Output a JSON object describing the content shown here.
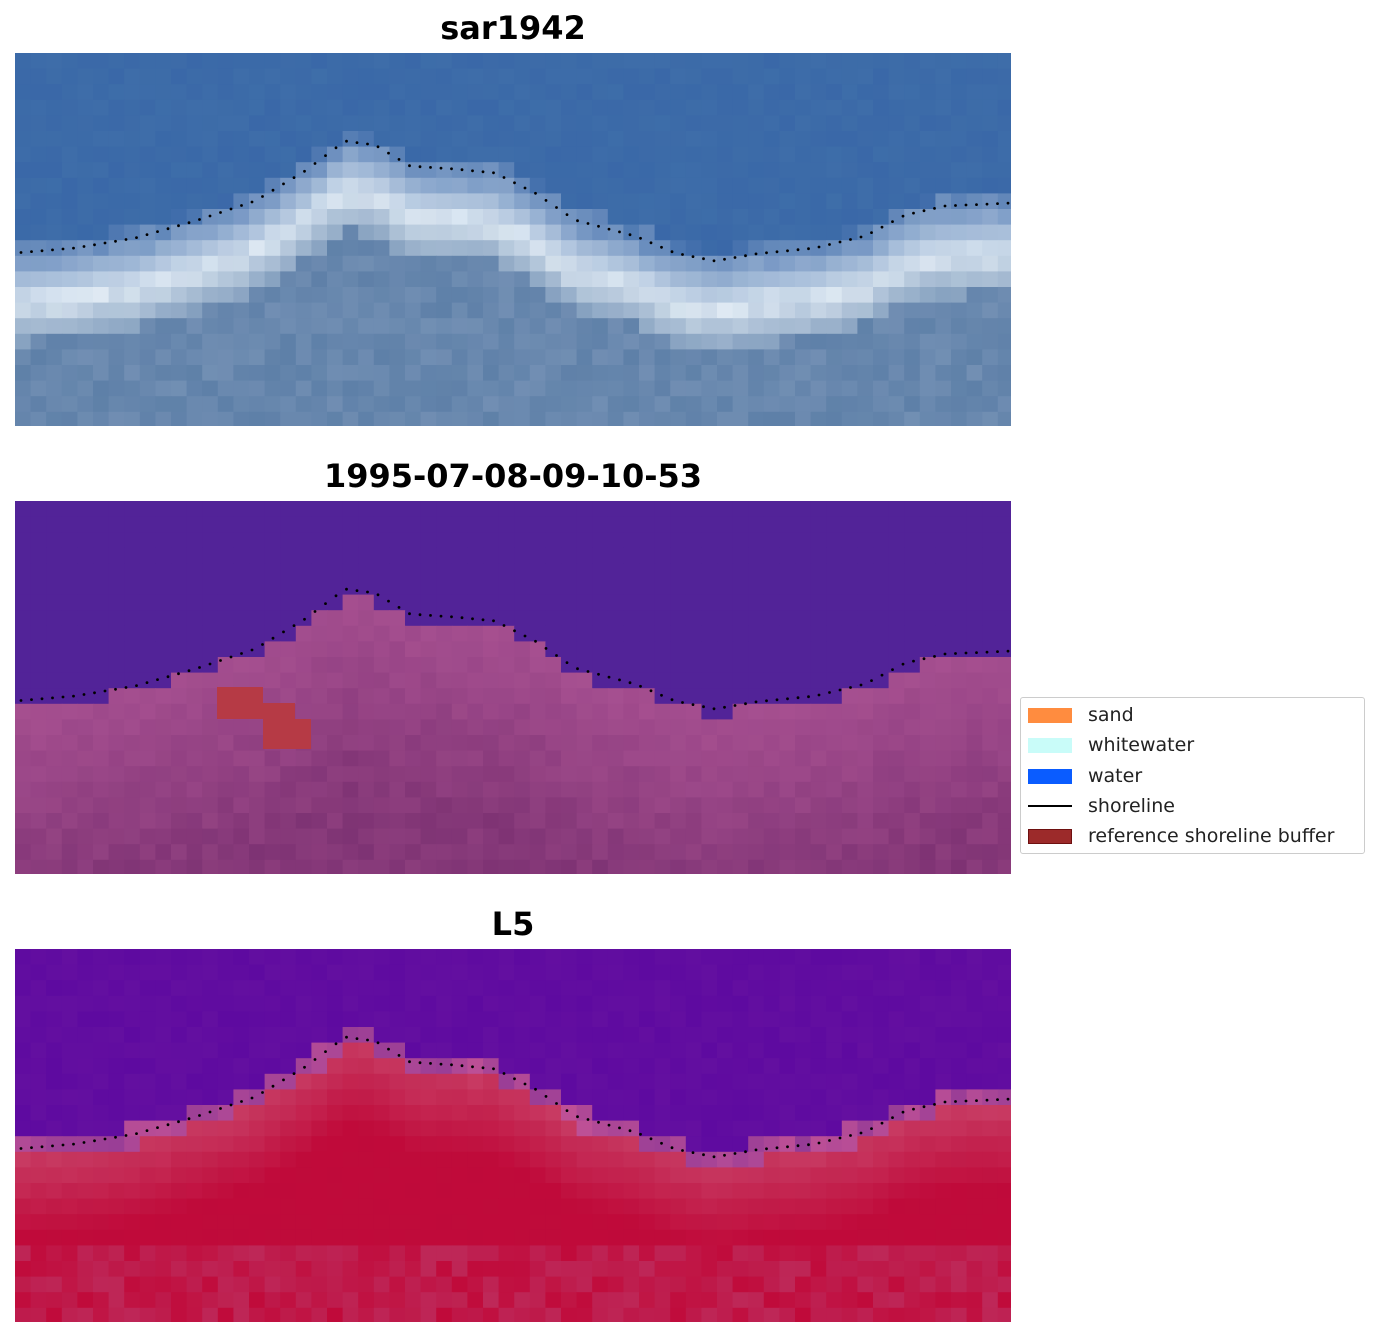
{
  "panels": [
    {
      "title": "sar1942",
      "kind": "rgb"
    },
    {
      "title": "1995-07-08-09-10-53",
      "kind": "classified"
    },
    {
      "title": "L5",
      "kind": "index"
    }
  ],
  "legend": {
    "items": [
      {
        "label": "sand",
        "type": "patch",
        "color": "#ff8c3f"
      },
      {
        "label": "whitewater",
        "type": "patch",
        "color": "#c9fcf9"
      },
      {
        "label": "water",
        "type": "patch",
        "color": "#0a5cff"
      },
      {
        "label": "shoreline",
        "type": "line",
        "color": "#000000"
      },
      {
        "label": "reference shoreline buffer",
        "type": "patch",
        "color": "#9c2a2a"
      }
    ]
  },
  "colors": {
    "rgb_water": "#3a68a8",
    "rgb_foam": "#e4eef6",
    "rgb_land": "#5e80a8",
    "classified_water": "#522398",
    "classified_land": "#a24c8e",
    "classified_buffer": "#b63a45",
    "index_water": "#5e0aa0",
    "index_land": "#c00a3a"
  }
}
